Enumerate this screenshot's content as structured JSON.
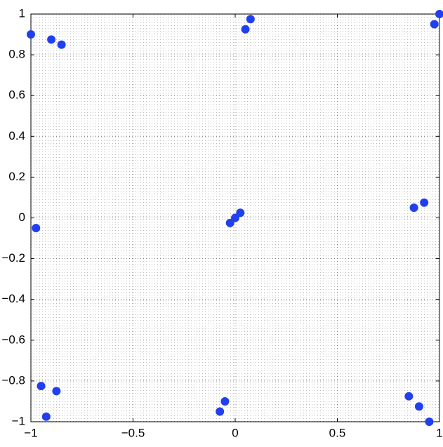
{
  "chart_data": {
    "type": "scatter",
    "x": [
      -1,
      -0.9,
      -0.85,
      0.075,
      0.05,
      1,
      0.975,
      -0.975,
      -0.025,
      0,
      0.025,
      0.875,
      0.925,
      -0.95,
      -0.875,
      -0.925,
      -0.05,
      -0.075,
      0.85,
      0.9,
      0.95
    ],
    "values": [
      0.9,
      0.875,
      0.85,
      0.975,
      0.925,
      1,
      0.95,
      -0.05,
      -0.025,
      0,
      0.025,
      0.05,
      0.075,
      -0.825,
      -0.85,
      -0.975,
      -0.9,
      -0.95,
      -0.875,
      -0.925,
      -1
    ],
    "color": "#2040f0",
    "xlim": [
      -1,
      1
    ],
    "ylim": [
      -1,
      1
    ],
    "xticks": [
      {
        "value": -1,
        "label": "−1"
      },
      {
        "value": -0.5,
        "label": "−0.5"
      },
      0,
      0.5,
      1
    ],
    "yticks": [
      {
        "value": -1,
        "label": "−1"
      },
      {
        "value": -0.8,
        "label": "−0.8"
      },
      {
        "value": -0.6,
        "label": "−0.6"
      },
      {
        "value": -0.4,
        "label": "−0.4"
      },
      {
        "value": -0.2,
        "label": "−0.2"
      },
      0,
      0.2,
      0.4,
      0.6,
      0.8,
      1
    ],
    "grid": true
  }
}
